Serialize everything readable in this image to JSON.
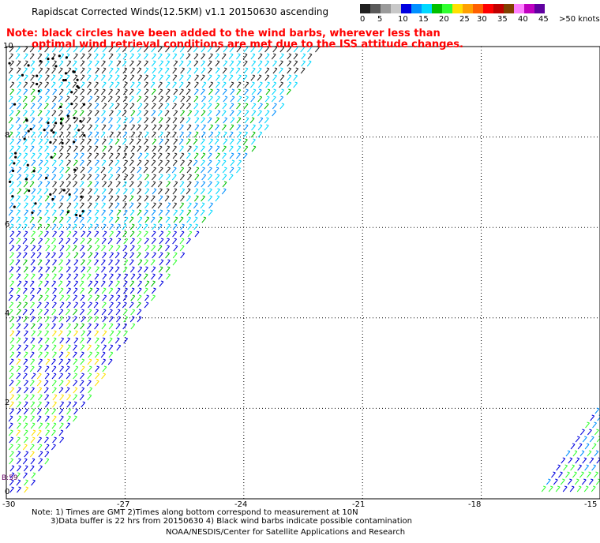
{
  "header": {
    "title": "Rapidscat Corrected Winds(12.5KM) v1.1 20150630 ascending",
    "note_line1": "Note: black circles have been added to the wind barbs, wherever less than",
    "note_line2": "optimal wind retrieval conditions are met due to the ISS attitude changes."
  },
  "legend": {
    "colors": [
      "#202020",
      "#5a5a5a",
      "#9a9a9a",
      "#c8c8c8",
      "#0000e0",
      "#0090ff",
      "#00d8ff",
      "#00c000",
      "#30ff30",
      "#ffe000",
      "#ffa000",
      "#ff6000",
      "#ff0000",
      "#c00000",
      "#804000",
      "#ff80ff",
      "#c000c0",
      "#6000a0"
    ],
    "labels": [
      "0",
      "5",
      "10",
      "15",
      "20",
      "25",
      "30",
      "35",
      "40",
      "45",
      ">50 knots"
    ]
  },
  "axes": {
    "x_ticks": [
      "-30",
      "-27",
      "-24",
      "-21",
      "-18",
      "-15"
    ],
    "y_ticks": [
      "0",
      "2",
      "4",
      "6",
      "8",
      "10"
    ],
    "x_range": [
      -30,
      -15
    ],
    "y_range": [
      0,
      10
    ]
  },
  "map_tag": "B:59",
  "footer": {
    "note1": "Note: 1) Times are GMT 2)Times along bottom correspond to measurement at 10N",
    "note2": "3)Data buffer is 22 hrs from 20150630 4) Black wind barbs indicate possible contamination",
    "credit": "NOAA/NESDIS/Center for Satellite Applications and Research"
  }
}
